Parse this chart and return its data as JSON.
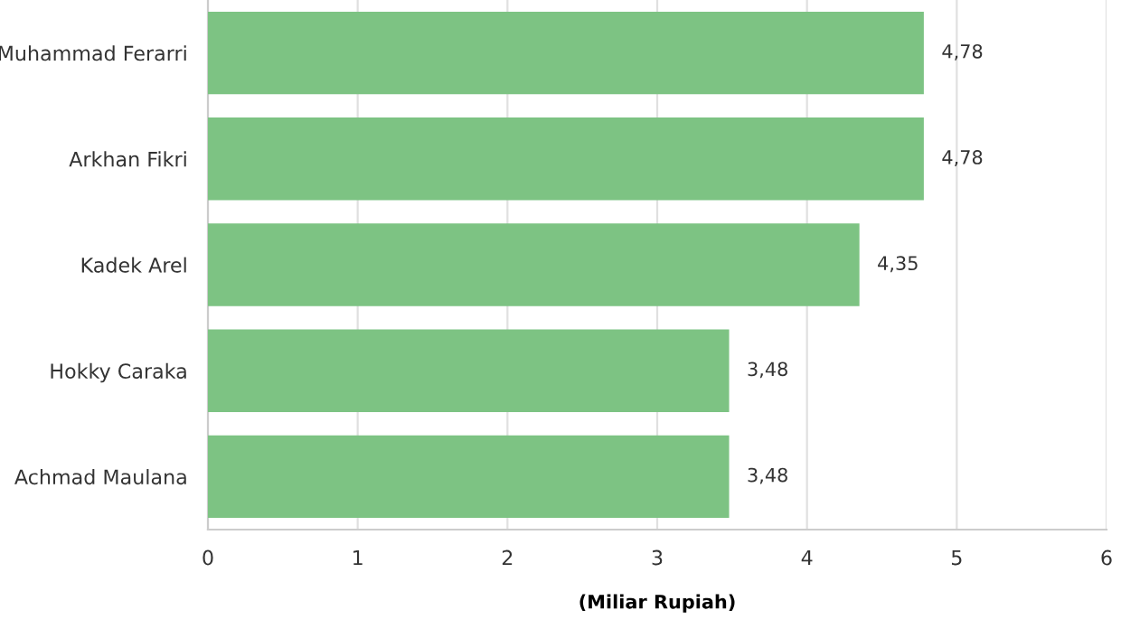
{
  "chart_data": {
    "type": "bar",
    "orientation": "horizontal",
    "xlabel": "(Miliar Rupiah)",
    "categories": [
      "Muhammad Ferarri",
      "Arkhan Fikri",
      "Kadek Arel",
      "Hokky Caraka",
      "Achmad Maulana"
    ],
    "values": [
      4.78,
      4.78,
      4.35,
      3.48,
      3.48
    ],
    "value_labels": [
      "4,78",
      "4,78",
      "4,35",
      "3,48",
      "3,48"
    ],
    "color": "#7dc383",
    "xlim": [
      0,
      6
    ],
    "xticks": [
      0,
      1,
      2,
      3,
      4,
      5,
      6
    ],
    "grid": "x",
    "legend": false
  }
}
